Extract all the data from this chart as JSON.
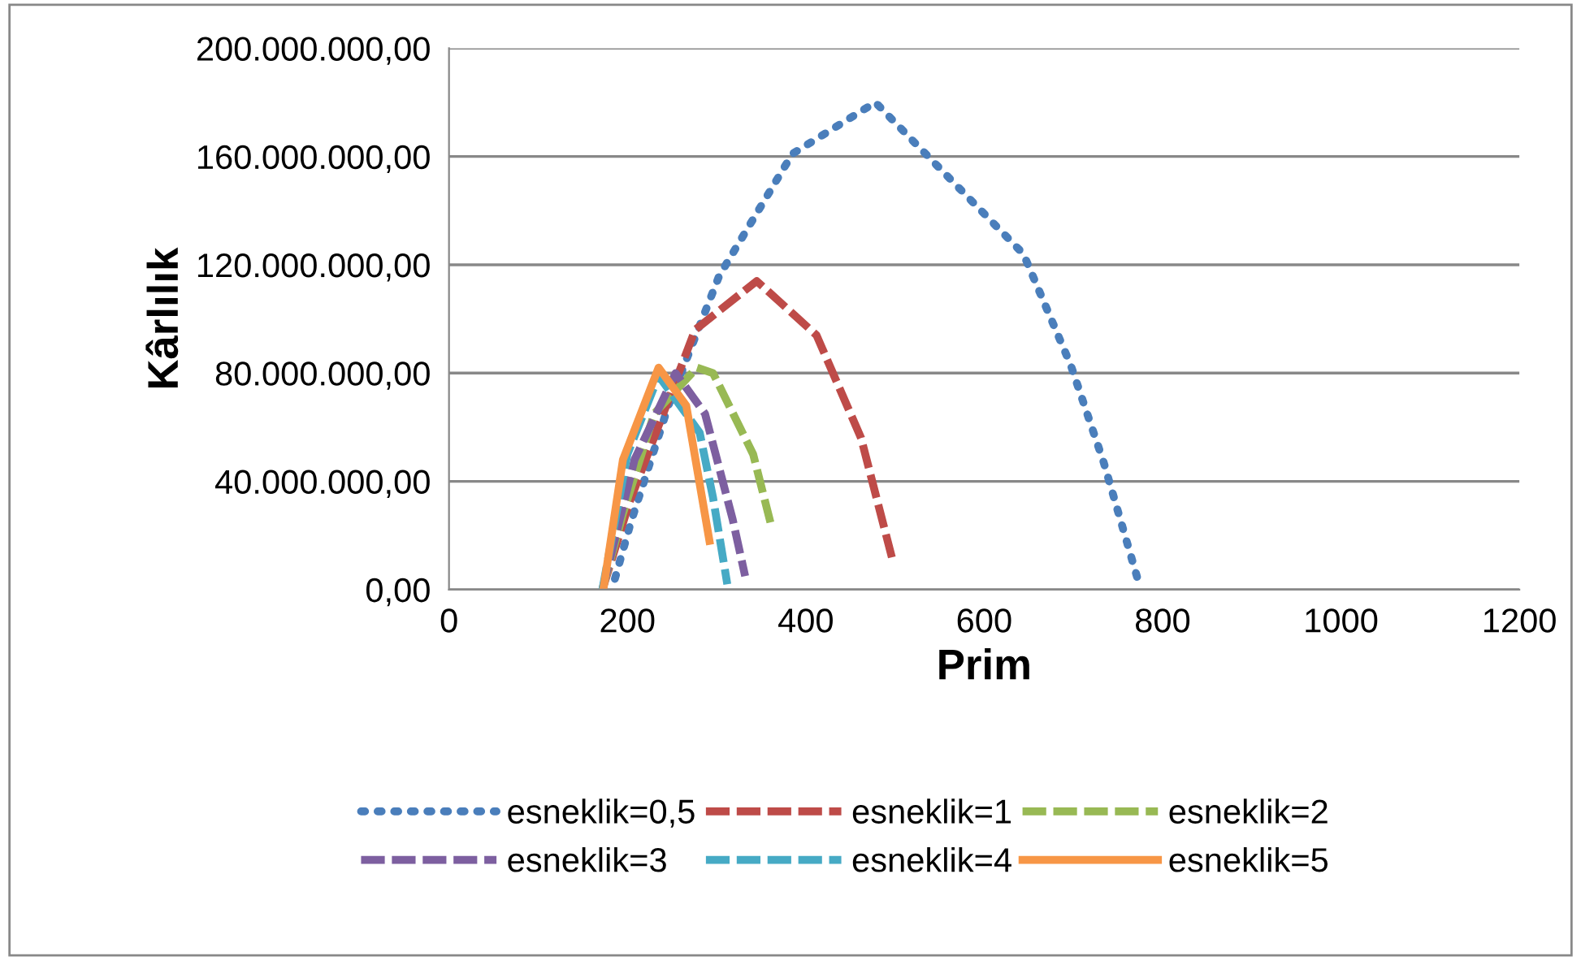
{
  "chart_data": {
    "type": "line",
    "xlabel": "Prim",
    "ylabel": "Kârlılık",
    "xlim": [
      0,
      1200
    ],
    "xticks": [
      0,
      200,
      400,
      600,
      800,
      1000,
      1200
    ],
    "ylim": [
      0,
      200000000
    ],
    "yticks": [
      {
        "value": 0,
        "label": "0,00"
      },
      {
        "value": 40000000,
        "label": "40.000.000,00"
      },
      {
        "value": 80000000,
        "label": "80.000.000,00"
      },
      {
        "value": 120000000,
        "label": "120.000.000,00"
      },
      {
        "value": 160000000,
        "label": "160.000.000,00"
      },
      {
        "value": 200000000,
        "label": "200.000.000,00"
      }
    ],
    "grid": "y",
    "legend": "bottom",
    "marker": "none",
    "series": [
      {
        "name": "esneklik=0,5",
        "color": "#4a7ebb",
        "line_style": "dotted",
        "x": [
          186,
          204,
          246,
          303,
          385,
          478,
          644,
          697,
          734,
          772
        ],
        "values": [
          4000000,
          25000000,
          68000000,
          116000000,
          161000000,
          180000000,
          124000000,
          83000000,
          47000000,
          4000000
        ]
      },
      {
        "name": "esneklik=1",
        "color": "#be4b48",
        "line_style": "dashed",
        "x": [
          172,
          202,
          276,
          345,
          412,
          462,
          498
        ],
        "values": [
          0,
          32000000,
          96000000,
          114000000,
          94000000,
          56000000,
          10000000
        ]
      },
      {
        "name": "esneklik=2",
        "color": "#98b954",
        "line_style": "dashed",
        "x": [
          172,
          195,
          230,
          278,
          296,
          341,
          361
        ],
        "values": [
          0,
          28000000,
          65000000,
          82000000,
          80000000,
          50000000,
          24000000
        ]
      },
      {
        "name": "esneklik=3",
        "color": "#7d5fa0",
        "line_style": "dashed",
        "x": [
          172,
          208,
          254,
          287,
          318,
          332
        ],
        "values": [
          0,
          48000000,
          80000000,
          65000000,
          26000000,
          5000000
        ]
      },
      {
        "name": "esneklik=4",
        "color": "#46aac5",
        "line_style": "dashed",
        "x": [
          172,
          200,
          235,
          281,
          296,
          304,
          312
        ],
        "values": [
          0,
          50000000,
          79000000,
          58000000,
          34000000,
          18000000,
          2000000
        ]
      },
      {
        "name": "esneklik=5",
        "color": "#f79646",
        "line_style": "solid",
        "x": [
          173,
          195,
          235,
          266,
          292
        ],
        "values": [
          0,
          48000000,
          82000000,
          68000000,
          18000000
        ]
      }
    ]
  }
}
